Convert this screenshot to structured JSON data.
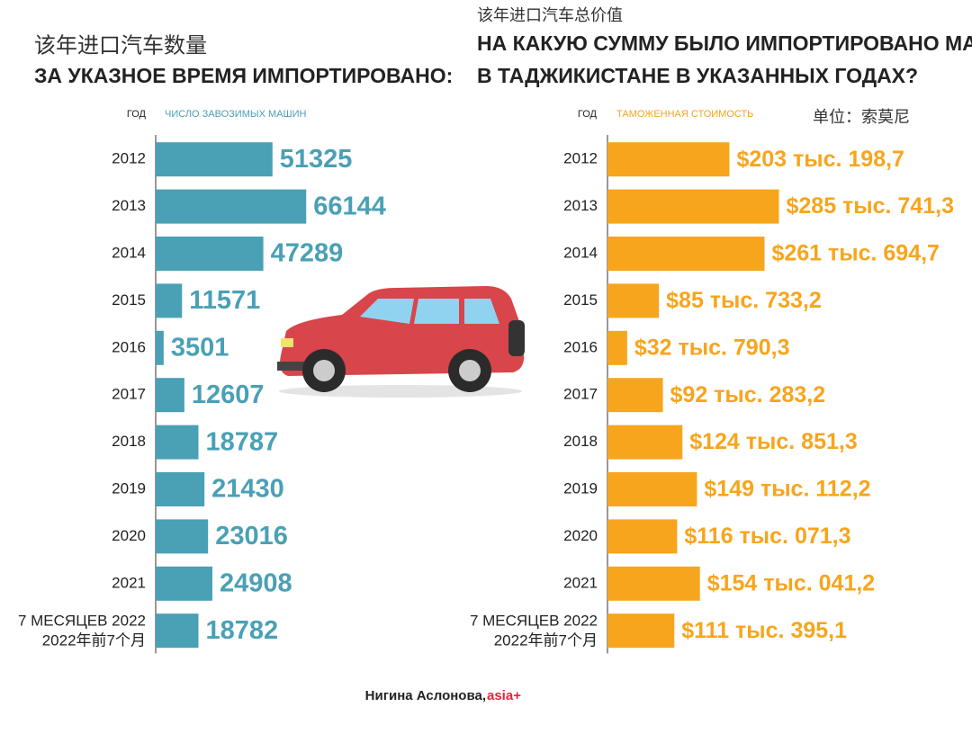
{
  "chart_data": [
    {
      "type": "bar",
      "orientation": "horizontal",
      "title": "该年进口汽车数量",
      "subtitle": [
        "ЗА УКАЗНОЕ ВРЕМЯ ИМПОРТИРОВАНО:"
      ],
      "category_header": "ГОД",
      "value_header": "ЧИСЛО ЗАВОЗИМЫХ МАШИН",
      "categories": [
        "2012",
        "2013",
        "2014",
        "2015",
        "2016",
        "2017",
        "2018",
        "2019",
        "2020",
        "2021",
        [
          "7 МЕСЯЦЕВ 2022",
          "2022年前7个月"
        ]
      ],
      "values": [
        51325,
        66144,
        47289,
        11571,
        3501,
        12607,
        18787,
        21430,
        23016,
        24908,
        18782
      ],
      "color": "#4aa0b5",
      "xlim": [
        0,
        70000
      ]
    },
    {
      "type": "bar",
      "orientation": "horizontal",
      "title": "该年进口汽车总价值",
      "subtitle": [
        "НА КАКУЮ СУММУ БЫЛО ИМПОРТИРОВАНО МАШИН",
        "В ТАДЖИКИСТАНЕ В УКАЗАННЫХ ГОДАХ?"
      ],
      "category_header": "ГОД",
      "value_header": "ТАМОЖЕННАЯ СТОИМОСТЬ",
      "unit": "单位：索莫尼",
      "categories": [
        "2012",
        "2013",
        "2014",
        "2015",
        "2016",
        "2017",
        "2018",
        "2019",
        "2020",
        "2021",
        [
          "7 МЕСЯЦЕВ 2022",
          "2022年前7个月"
        ]
      ],
      "values": [
        203198.7,
        285741.3,
        261694.7,
        85733.2,
        32790.3,
        92283.2,
        124851.3,
        149112.2,
        116071.3,
        154041.2,
        111395.1
      ],
      "value_labels": [
        "$203 тыс. 198,7",
        "$285 тыс. 741,3",
        "$261 тыс. 694,7",
        "$85 тыс. 733,2",
        "$32 тыс. 790,3",
        "$92 тыс. 283,2",
        "$124 тыс. 851,3",
        "$149 тыс. 112,2",
        "$116 тыс. 071,3",
        "$154 тыс. 041,2",
        "$111 тыс. 395,1"
      ],
      "color": "#f7a51c",
      "xlim": [
        0,
        300000
      ]
    }
  ],
  "footer": {
    "author": "Нигина Аслонова, ",
    "source": "asia+"
  }
}
